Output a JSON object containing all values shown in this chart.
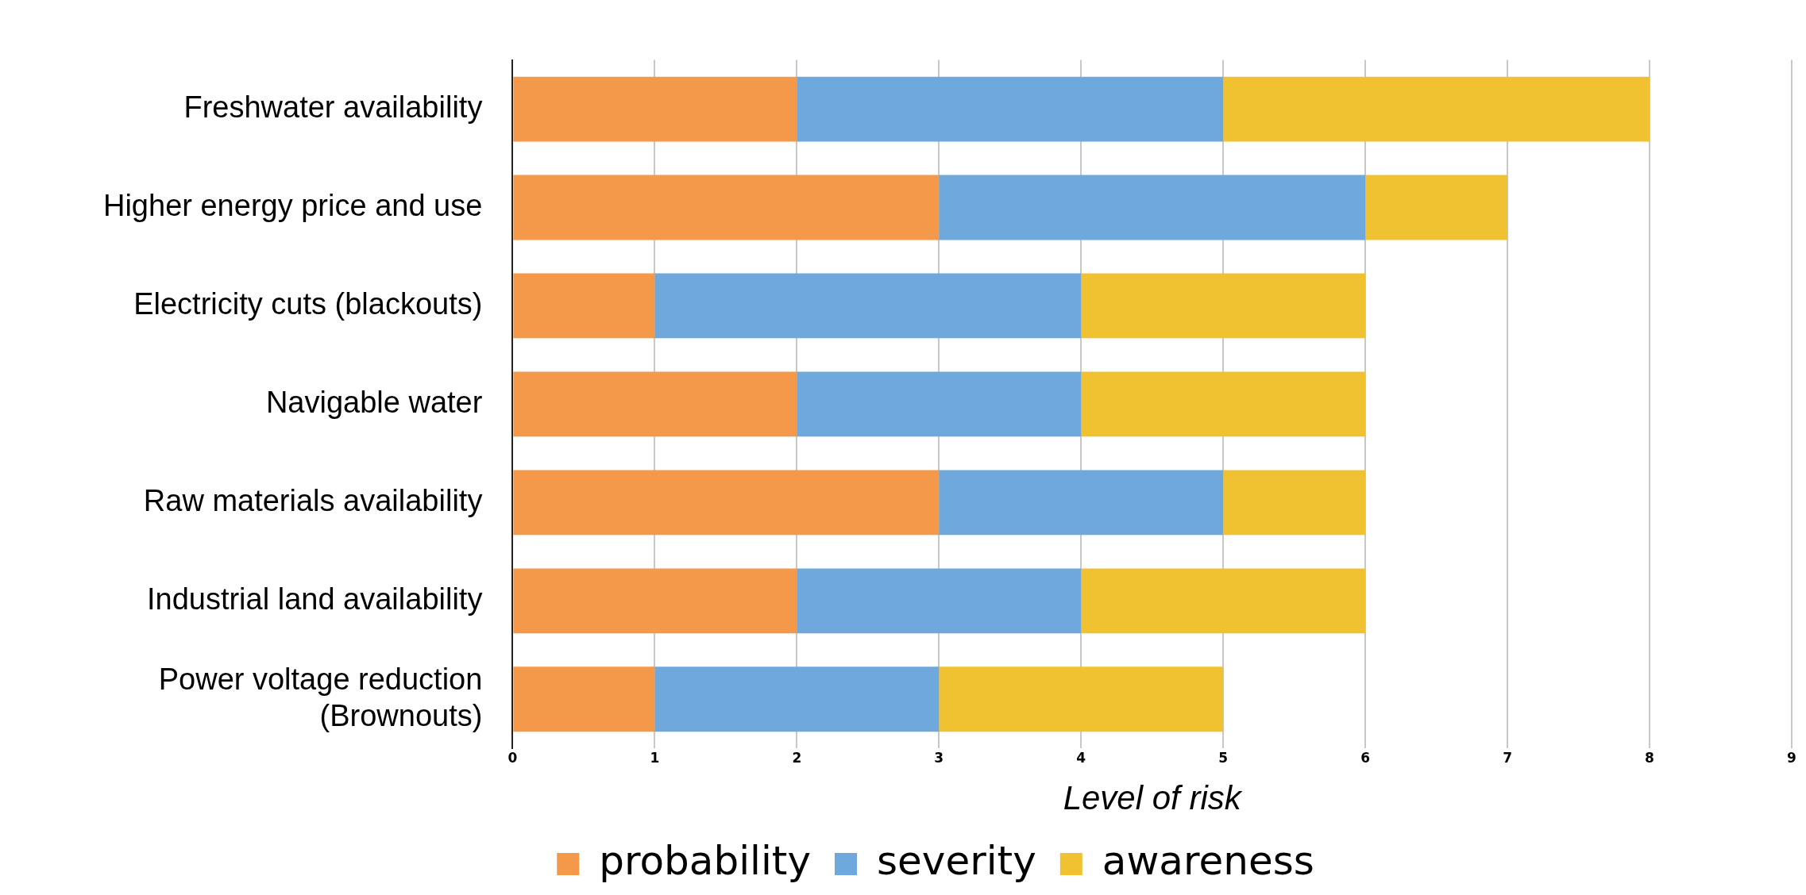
{
  "chart_data": {
    "type": "bar",
    "orientation": "horizontal",
    "stacked": true,
    "categories": [
      "Freshwater availability",
      "Higher energy price and use",
      "Electricity cuts (blackouts)",
      "Navigable water",
      "Raw materials availability",
      "Industrial land availability",
      "Power voltage reduction\n(Brownouts)"
    ],
    "series": [
      {
        "name": "probability",
        "color": "#f4994a",
        "values": [
          2,
          3,
          1,
          2,
          3,
          2,
          1
        ]
      },
      {
        "name": "severity",
        "color": "#6fa8dc",
        "values": [
          3,
          3,
          3,
          2,
          2,
          2,
          2
        ]
      },
      {
        "name": "awareness",
        "color": "#f0c232",
        "values": [
          3,
          1,
          2,
          2,
          1,
          2,
          2
        ]
      }
    ],
    "xlabel": "Level of risk",
    "xlim": [
      0,
      9
    ],
    "xticks": [
      0,
      1,
      2,
      3,
      4,
      5,
      6,
      7,
      8,
      9
    ],
    "grid": "x",
    "legend": "bottom"
  }
}
